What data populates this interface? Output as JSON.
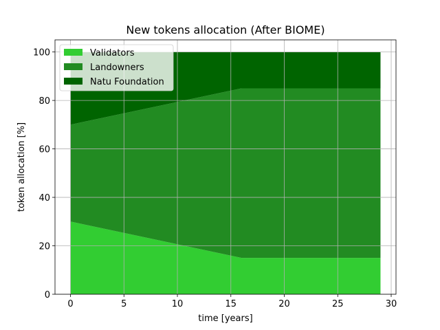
{
  "chart_data": {
    "type": "area",
    "stacked": true,
    "title": "New tokens allocation (After BIOME)",
    "xlabel": "time [years]",
    "ylabel": "token allocation [%]",
    "xlim": [
      -1.45,
      30.45
    ],
    "ylim": [
      0,
      105
    ],
    "xticks": [
      0,
      5,
      10,
      15,
      20,
      25,
      30
    ],
    "yticks": [
      0,
      20,
      40,
      60,
      80,
      100
    ],
    "grid": true,
    "legend_position": "top-left",
    "x": [
      0,
      16,
      29
    ],
    "series": [
      {
        "name": "Validators",
        "color": "#32cd32",
        "values": [
          30,
          15,
          15
        ]
      },
      {
        "name": "Landowners",
        "color": "#228b22",
        "values": [
          40,
          70,
          70
        ]
      },
      {
        "name": "Natu Foundation",
        "color": "#006400",
        "values": [
          30,
          15,
          15
        ]
      }
    ]
  }
}
